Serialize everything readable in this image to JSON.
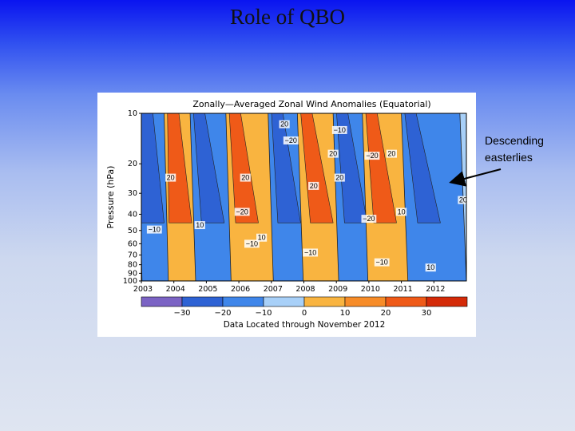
{
  "slide": {
    "title": "Role of QBO"
  },
  "annotation": {
    "line1": "Descending",
    "line2": "easterlies"
  },
  "chart_data": {
    "type": "heatmap",
    "title": "Zonally—Averaged Zonal Wind Anomalies (Equatorial)",
    "xlabel": "",
    "ylabel": "Pressure (hPa)",
    "footer": "Data Located through November 2012",
    "x_ticks": [
      "2003",
      "2004",
      "2005",
      "2006",
      "2007",
      "2008",
      "2009",
      "2010",
      "2011",
      "2012"
    ],
    "y_ticks": [
      10,
      20,
      30,
      40,
      50,
      60,
      70,
      80,
      90,
      100
    ],
    "y_scale": "log",
    "ylim": [
      100,
      10
    ],
    "colorbar": {
      "ticks": [
        "−30",
        "−20",
        "−10",
        "0",
        "10",
        "20",
        "30"
      ],
      "bins": [
        -40,
        -30,
        -20,
        -10,
        0,
        10,
        20,
        30,
        40
      ],
      "colors": [
        "#7b63c4",
        "#2e62d4",
        "#3f86ea",
        "#a8d0f8",
        "#f9b440",
        "#f78c28",
        "#ef5a18",
        "#d42a08"
      ]
    },
    "contour_labels": [
      {
        "text": "−10",
        "year": 2009.1,
        "p": 13
      },
      {
        "text": "−20",
        "year": 2007.6,
        "p": 15
      },
      {
        "text": "20",
        "year": 2007.4,
        "p": 12
      },
      {
        "text": "20",
        "year": 2008.9,
        "p": 18
      },
      {
        "text": "−20",
        "year": 2010.1,
        "p": 18.5
      },
      {
        "text": "20",
        "year": 2010.7,
        "p": 18
      },
      {
        "text": "20",
        "year": 2003.9,
        "p": 25
      },
      {
        "text": "20",
        "year": 2006.2,
        "p": 25
      },
      {
        "text": "20",
        "year": 2008.3,
        "p": 28
      },
      {
        "text": "20",
        "year": 2009.1,
        "p": 25
      },
      {
        "text": "−20",
        "year": 2006.1,
        "p": 40
      },
      {
        "text": "10",
        "year": 2004.8,
        "p": 48
      },
      {
        "text": "−10",
        "year": 2003.4,
        "p": 51
      },
      {
        "text": "10",
        "year": 2011.0,
        "p": 40
      },
      {
        "text": "−20",
        "year": 2010.0,
        "p": 44
      },
      {
        "text": "−10",
        "year": 2006.4,
        "p": 62
      },
      {
        "text": "10",
        "year": 2006.7,
        "p": 57
      },
      {
        "text": "−10",
        "year": 2008.2,
        "p": 70
      },
      {
        "text": "−10",
        "year": 2010.4,
        "p": 80
      },
      {
        "text": "20",
        "year": 2012.9,
        "p": 34
      },
      {
        "text": "10",
        "year": 2011.9,
        "p": 86
      }
    ],
    "bands": [
      {
        "sign": "easterly",
        "top_year": 2002.9,
        "bottom_year": 2004.1
      },
      {
        "sign": "westerly",
        "top_year": 2003.7,
        "bottom_year": 2005.0
      },
      {
        "sign": "easterly",
        "top_year": 2004.5,
        "bottom_year": 2006.2
      },
      {
        "sign": "westerly",
        "top_year": 2005.6,
        "bottom_year": 2007.2
      },
      {
        "sign": "easterly",
        "top_year": 2006.9,
        "bottom_year": 2008.5
      },
      {
        "sign": "westerly",
        "top_year": 2007.8,
        "bottom_year": 2009.6
      },
      {
        "sign": "easterly",
        "top_year": 2008.9,
        "bottom_year": 2010.6
      },
      {
        "sign": "westerly",
        "top_year": 2009.8,
        "bottom_year": 2011.5
      },
      {
        "sign": "easterly",
        "top_year": 2011.0,
        "bottom_year": 2013.0
      }
    ]
  }
}
